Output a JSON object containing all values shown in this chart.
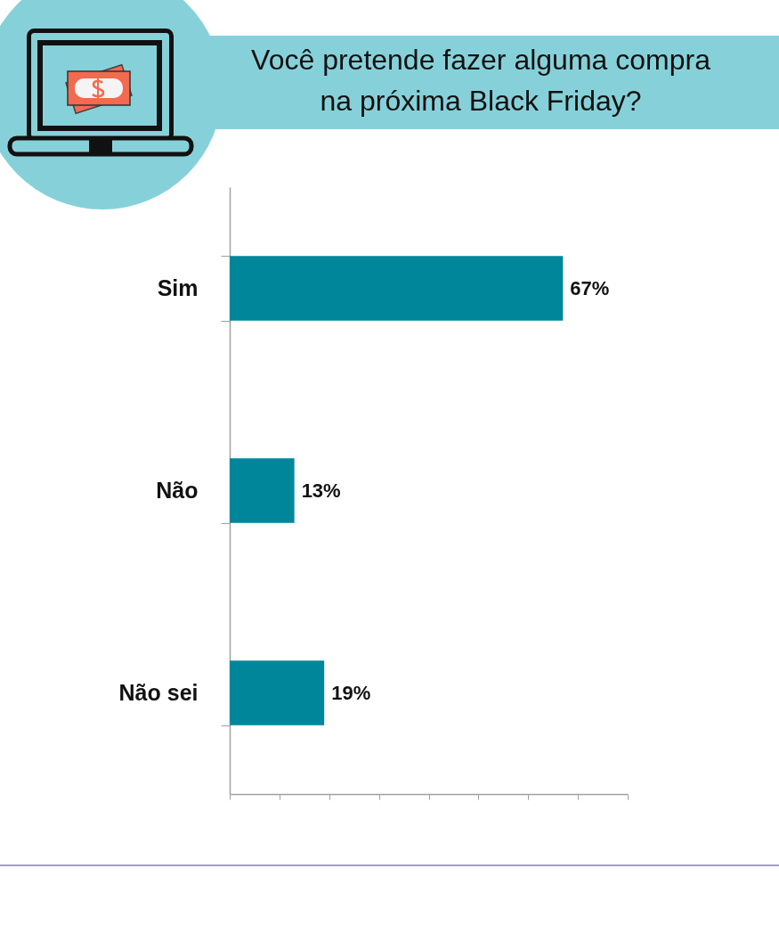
{
  "chart_data": {
    "type": "bar",
    "title": "Você pretende fazer alguma compra na próxima Black Friday?",
    "orientation": "horizontal",
    "categories": [
      "Sim",
      "Não",
      "Não sei"
    ],
    "values": [
      67,
      13,
      19
    ],
    "value_labels": [
      "67%",
      "13%",
      "19%"
    ],
    "color": "#00869b",
    "xlim": [
      0,
      80
    ],
    "xticks": [
      {
        "value": 0,
        "label": null
      },
      {
        "value": 10,
        "label": null
      },
      {
        "value": 20,
        "label": null
      },
      {
        "value": 30,
        "label": null
      },
      {
        "value": 40,
        "label": null
      },
      {
        "value": 50,
        "label": null
      },
      {
        "value": 60,
        "label": null
      },
      {
        "value": 70,
        "label": null
      },
      {
        "value": 80,
        "label": null
      }
    ],
    "tick_labels": "y"
  }
}
